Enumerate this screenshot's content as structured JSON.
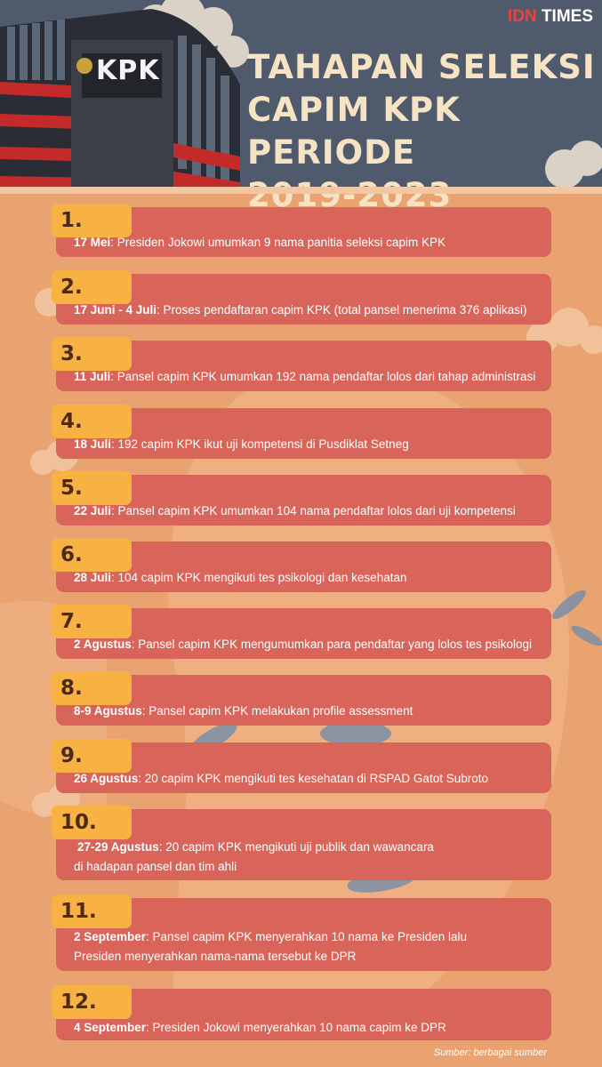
{
  "brand": {
    "idn": "IDN",
    "times": "TIMES"
  },
  "title_lines": [
    "TAHAPAN SELEKSI",
    "CAPIM KPK PERIODE",
    "2019-2023"
  ],
  "building_sign": "KPK",
  "steps": [
    {
      "number": "1.",
      "date": "17 Mei",
      "text": ": Presiden Jokowi umumkan 9 nama panitia seleksi capim KPK",
      "text2": ""
    },
    {
      "number": "2.",
      "date": "17 Juni - 4 Juli",
      "text": ": Proses pendaftaran capim KPK (total pansel menerima 376 aplikasi)",
      "text2": ""
    },
    {
      "number": "3.",
      "date": "11 Juli",
      "text": ": Pansel capim KPK umumkan 192 nama pendaftar lolos dari tahap administrasi",
      "text2": ""
    },
    {
      "number": "4.",
      "date": "18 Juli",
      "text": ": 192 capim KPK ikut uji kompetensi di Pusdiklat Setneg",
      "text2": ""
    },
    {
      "number": "5.",
      "date": "22 Juli",
      "text": ": Pansel capim KPK umumkan 104 nama pendaftar lolos dari uji kompetensi",
      "text2": ""
    },
    {
      "number": "6.",
      "date": "28 Juli",
      "text": ": 104 capim KPK mengikuti tes psikologi dan kesehatan",
      "text2": ""
    },
    {
      "number": "7.",
      "date": "2 Agustus",
      "text": ": Pansel capim KPK mengumumkan para pendaftar yang lolos tes psikologi",
      "text2": ""
    },
    {
      "number": "8.",
      "date": "8-9 Agustus",
      "text": ": Pansel capim KPK melakukan profile assessment",
      "text2": ""
    },
    {
      "number": "9.",
      "date": "26 Agustus",
      "text": ": 20 capim KPK mengikuti tes kesehatan di RSPAD Gatot Subroto",
      "text2": ""
    },
    {
      "number": "10.",
      "date": "27-29 Agustus",
      "text": ": 20 capim KPK mengikuti uji publik dan wawancara",
      "text2": "di hadapan pansel dan tim ahli"
    },
    {
      "number": "11.",
      "date": "2 September",
      "text": ": Pansel capim KPK menyerahkan 10 nama ke Presiden lalu",
      "text2": "Presiden menyerahkan nama-nama tersebut ke DPR"
    },
    {
      "number": "12.",
      "date": "4 September",
      "text": ": Presiden Jokowi menyerahkan 10 nama capim ke DPR",
      "text2": ""
    }
  ],
  "source": "Sumber: berbagai sumber",
  "colors": {
    "background": "#e9a370",
    "header": "#4f5a6c",
    "card": "#d9645a",
    "number_tab": "#f7b243",
    "title": "#f6e3c4",
    "brand_red": "#e8433d"
  }
}
